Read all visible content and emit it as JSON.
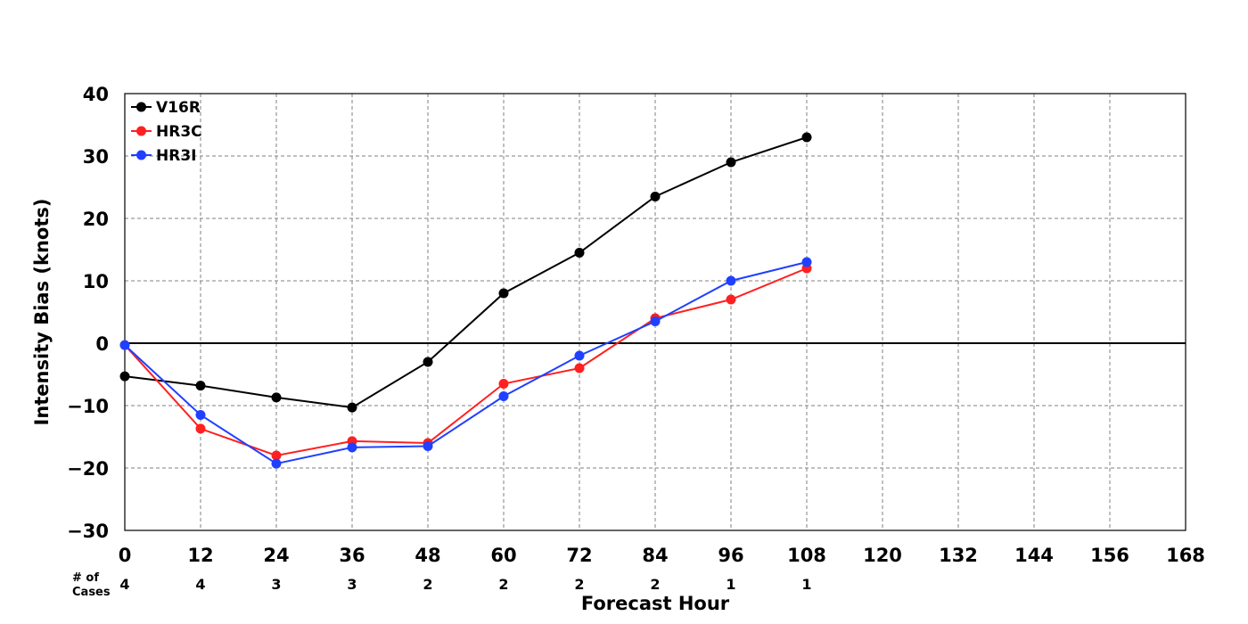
{
  "chart_data": {
    "type": "line",
    "xlabel": "Forecast Hour",
    "ylabel": "Intensity Bias (knots)",
    "xlim": [
      0,
      168
    ],
    "ylim": [
      -30,
      40
    ],
    "x_ticks": [
      0,
      12,
      24,
      36,
      48,
      60,
      72,
      84,
      96,
      108,
      120,
      132,
      144,
      156,
      168
    ],
    "y_ticks": [
      -30,
      -20,
      -10,
      0,
      10,
      20,
      30,
      40
    ],
    "grid": true,
    "legend_position": "top-left",
    "zero_line": true,
    "cases_label": [
      "# of",
      "Cases"
    ],
    "cases": [
      {
        "x": 0,
        "n": "4"
      },
      {
        "x": 12,
        "n": "4"
      },
      {
        "x": 24,
        "n": "3"
      },
      {
        "x": 36,
        "n": "3"
      },
      {
        "x": 48,
        "n": "2"
      },
      {
        "x": 60,
        "n": "2"
      },
      {
        "x": 72,
        "n": "2"
      },
      {
        "x": 84,
        "n": "2"
      },
      {
        "x": 96,
        "n": "1"
      },
      {
        "x": 108,
        "n": "1"
      }
    ],
    "series": [
      {
        "name": "V16R",
        "color": "#000000",
        "x": [
          0,
          12,
          24,
          36,
          48,
          60,
          72,
          84,
          96,
          108
        ],
        "y": [
          -5.3,
          -6.8,
          -8.7,
          -10.3,
          -3.0,
          8.0,
          14.5,
          23.5,
          29.0,
          33.0
        ]
      },
      {
        "name": "HR3C",
        "color": "#ff2020",
        "x": [
          0,
          12,
          24,
          36,
          48,
          60,
          72,
          84,
          96,
          108
        ],
        "y": [
          -0.3,
          -13.7,
          -18.0,
          -15.7,
          -16.0,
          -6.5,
          -4.0,
          4.0,
          7.0,
          12.0
        ]
      },
      {
        "name": "HR3I",
        "color": "#2040ff",
        "x": [
          0,
          12,
          24,
          36,
          48,
          60,
          72,
          84,
          96,
          108
        ],
        "y": [
          -0.3,
          -11.5,
          -19.3,
          -16.7,
          -16.5,
          -8.5,
          -2.0,
          3.5,
          10.0,
          13.0
        ]
      }
    ]
  }
}
